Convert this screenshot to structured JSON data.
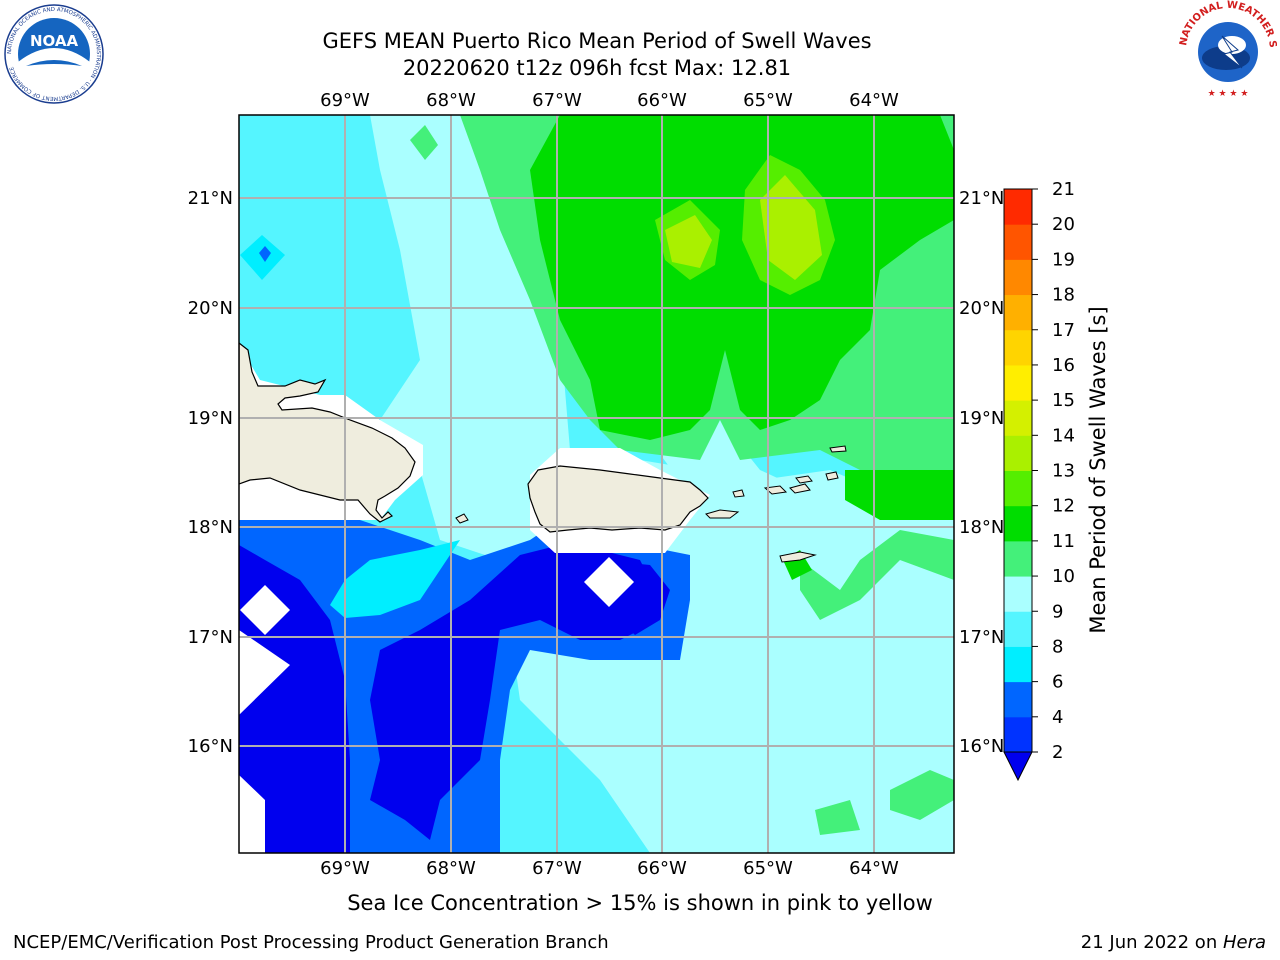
{
  "title_line1": "GEFS MEAN Puerto Rico Mean Period of Swell Waves",
  "title_line2": "20220620 t12z 096h fcst   Max: 12.81",
  "lon_labels": [
    "69°W",
    "68°W",
    "67°W",
    "66°W",
    "65°W",
    "64°W"
  ],
  "lat_labels": [
    "21°N",
    "20°N",
    "19°N",
    "18°N",
    "17°N",
    "16°N"
  ],
  "colorbar": {
    "label": "Mean Period of Swell Waves [s]",
    "ticks": [
      "2",
      "4",
      "6",
      "8",
      "9",
      "10",
      "11",
      "12",
      "13",
      "14",
      "15",
      "16",
      "17",
      "18",
      "19",
      "20",
      "21"
    ],
    "colors": [
      "#0033ff",
      "#0066ff",
      "#00eeff",
      "#55f5ff",
      "#aaffff",
      "#44f07a",
      "#00dd00",
      "#55ee00",
      "#aaf000",
      "#d4f000",
      "#ffee00",
      "#ffd400",
      "#ffb000",
      "#ff8800",
      "#ff5500",
      "#ff2a00"
    ],
    "under_color": "#0000ee"
  },
  "sea_ice_note": "Sea Ice Concentration > 15% is shown in pink to yellow",
  "footer_left": "NCEP/EMC/Verification Post Processing Product Generation Branch",
  "footer_right_prefix": "21 Jun 2022 on ",
  "footer_right_host": "Hera",
  "logos": {
    "noaa_text": "NOAA",
    "noaa_ring_text": "NATIONAL OCEANIC AND ATMOSPHERIC ADMINISTRATION · U.S. DEPARTMENT OF COMMERCE",
    "nws_ring_text": "NATIONAL WEATHER SERVICE"
  },
  "map_colors": {
    "land": "#efedde",
    "grid": "#b0b0b0"
  }
}
